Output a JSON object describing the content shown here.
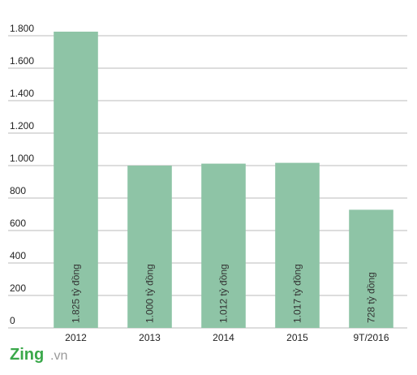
{
  "chart_data": {
    "type": "bar",
    "categories": [
      "2012",
      "2013",
      "2014",
      "2015",
      "9T/2016"
    ],
    "values": [
      1825,
      1000,
      1012,
      1017,
      728
    ],
    "value_labels": [
      "1.825 tỷ đồng",
      "1.000 tỷ đồng",
      "1.012 tỷ đồng",
      "1.017 tỷ đồng",
      "728 tỷ đồng"
    ],
    "color": "#8ec4a6",
    "ylim": [
      0,
      1850
    ],
    "yticks": [
      0,
      200,
      400,
      600,
      800,
      {
        "value": 1000,
        "label": "1.000"
      },
      {
        "value": 1200,
        "label": "1.200"
      },
      {
        "value": 1400,
        "label": "1.400"
      },
      {
        "value": 1600,
        "label": "1.600"
      },
      {
        "value": 1800,
        "label": "1.800"
      }
    ],
    "grid": true
  },
  "logo": {
    "brand": "Zing",
    "suffix": ".vn"
  }
}
